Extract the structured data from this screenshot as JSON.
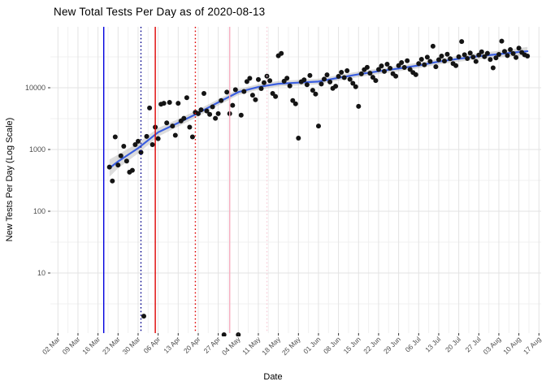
{
  "title": "New Total Tests Per Day as of 2020-08-13",
  "x_axis": {
    "label": "Date"
  },
  "y_axis": {
    "label": "New Tests Per Day (Log Scale)"
  },
  "colors": {
    "point": "#141414",
    "smooth_line": "#3B5FE0",
    "ribbon": "#9a9a9a",
    "grid_major": "#e3e3e3",
    "grid_minor": "#f0f0f0",
    "tick_label": "#4d4d4d",
    "vline_blue": "#0000DF",
    "vline_navy": "#00008B",
    "vline_red": "#DE0000",
    "vline_pink": "#F7AEC0",
    "vline_pink_light": "#F9CFDA"
  },
  "chart_data": {
    "type": "scatter",
    "title": "New Total Tests Per Day as of 2020-08-13",
    "xlabel": "Date",
    "ylabel": "New Tests Per Day (Log Scale)",
    "y_scale": "log10",
    "ylim": [
      1,
      97000
    ],
    "y_major_ticks": [
      10,
      100,
      1000,
      10000
    ],
    "y_minor_ticks": [
      3.162,
      31.62,
      316.2,
      3162,
      31623
    ],
    "x_range": [
      "2020-03-02",
      "2020-08-17"
    ],
    "x_tick_labels": [
      "02 Mar",
      "09 Mar",
      "16 Mar",
      "23 Mar",
      "30 Mar",
      "06 Apr",
      "13 Apr",
      "20 Apr",
      "27 Apr",
      "04 May",
      "11 May",
      "18 May",
      "25 May",
      "01 Jun",
      "08 Jun",
      "15 Jun",
      "22 Jun",
      "29 Jun",
      "06 Jul",
      "13 Jul",
      "20 Jul",
      "27 Jul",
      "03 Aug",
      "10 Aug",
      "17 Aug"
    ],
    "grid": "on",
    "legend": "none",
    "vlines": [
      {
        "name": "event-line-1",
        "date": "2020-03-18",
        "color": "#0000DF",
        "style": "solid"
      },
      {
        "name": "event-line-2",
        "date": "2020-03-31",
        "color": "#00008B",
        "style": "dotted"
      },
      {
        "name": "event-line-3",
        "date": "2020-04-05",
        "color": "#DE0000",
        "style": "solid"
      },
      {
        "name": "event-line-4",
        "date": "2020-04-19",
        "color": "#DE0000",
        "style": "dotted"
      },
      {
        "name": "event-line-5",
        "date": "2020-05-01",
        "color": "#F7AEC0",
        "style": "solid"
      },
      {
        "name": "event-line-6",
        "date": "2020-05-14",
        "color": "#F9CFDA",
        "style": "dotted"
      }
    ],
    "smooth_line": {
      "name": "loess-smooth",
      "color": "#3B5FE0",
      "anchors": [
        [
          "2020-03-20",
          500
        ],
        [
          "2020-03-23",
          640
        ],
        [
          "2020-03-30",
          1050
        ],
        [
          "2020-04-06",
          1900
        ],
        [
          "2020-04-13",
          2700
        ],
        [
          "2020-04-20",
          3900
        ],
        [
          "2020-04-27",
          5800
        ],
        [
          "2020-05-04",
          8500
        ],
        [
          "2020-05-11",
          10300
        ],
        [
          "2020-05-18",
          11600
        ],
        [
          "2020-05-25",
          12100
        ],
        [
          "2020-06-01",
          12600
        ],
        [
          "2020-06-08",
          14500
        ],
        [
          "2020-06-15",
          16500
        ],
        [
          "2020-06-22",
          18500
        ],
        [
          "2020-06-29",
          20500
        ],
        [
          "2020-07-06",
          23000
        ],
        [
          "2020-07-13",
          26500
        ],
        [
          "2020-07-20",
          29500
        ],
        [
          "2020-07-27",
          32500
        ],
        [
          "2020-08-03",
          35000
        ],
        [
          "2020-08-10",
          38000
        ],
        [
          "2020-08-13",
          39000
        ]
      ],
      "ribbon_halfwidth_log10": [
        0.14,
        0.11,
        0.085,
        0.07,
        0.06,
        0.055,
        0.05,
        0.048,
        0.045,
        0.045,
        0.045,
        0.045,
        0.045,
        0.045,
        0.045,
        0.045,
        0.045,
        0.045,
        0.048,
        0.05,
        0.055,
        0.062,
        0.07
      ]
    },
    "points": [
      [
        "2020-03-20",
        520
      ],
      [
        "2020-03-21",
        310
      ],
      [
        "2020-03-22",
        1600
      ],
      [
        "2020-03-23",
        560
      ],
      [
        "2020-03-24",
        790
      ],
      [
        "2020-03-25",
        1130
      ],
      [
        "2020-03-26",
        650
      ],
      [
        "2020-03-27",
        430
      ],
      [
        "2020-03-28",
        460
      ],
      [
        "2020-03-29",
        1200
      ],
      [
        "2020-03-30",
        1360
      ],
      [
        "2020-03-31",
        900
      ],
      [
        "2020-04-01",
        2
      ],
      [
        "2020-04-02",
        1630
      ],
      [
        "2020-04-03",
        4700
      ],
      [
        "2020-04-04",
        1200
      ],
      [
        "2020-04-05",
        2300
      ],
      [
        "2020-04-06",
        1500
      ],
      [
        "2020-04-07",
        5400
      ],
      [
        "2020-04-08",
        5600
      ],
      [
        "2020-04-09",
        2700
      ],
      [
        "2020-04-10",
        5800
      ],
      [
        "2020-04-11",
        2400
      ],
      [
        "2020-04-12",
        1700
      ],
      [
        "2020-04-13",
        5600
      ],
      [
        "2020-04-14",
        2900
      ],
      [
        "2020-04-15",
        3200
      ],
      [
        "2020-04-16",
        6900
      ],
      [
        "2020-04-17",
        2300
      ],
      [
        "2020-04-18",
        1600
      ],
      [
        "2020-04-19",
        4000
      ],
      [
        "2020-04-20",
        3800
      ],
      [
        "2020-04-21",
        4400
      ],
      [
        "2020-04-22",
        8100
      ],
      [
        "2020-04-23",
        4200
      ],
      [
        "2020-04-24",
        3700
      ],
      [
        "2020-04-25",
        4900
      ],
      [
        "2020-04-26",
        3200
      ],
      [
        "2020-04-27",
        3800
      ],
      [
        "2020-04-28",
        6200
      ],
      [
        "2020-04-29",
        1
      ],
      [
        "2020-04-30",
        8500
      ],
      [
        "2020-05-01",
        3800
      ],
      [
        "2020-05-02",
        5200
      ],
      [
        "2020-05-03",
        9300
      ],
      [
        "2020-05-04",
        1
      ],
      [
        "2020-05-05",
        3600
      ],
      [
        "2020-05-06",
        8700
      ],
      [
        "2020-05-07",
        12600
      ],
      [
        "2020-05-08",
        14200
      ],
      [
        "2020-05-09",
        7600
      ],
      [
        "2020-05-10",
        6400
      ],
      [
        "2020-05-11",
        13600
      ],
      [
        "2020-05-12",
        9700
      ],
      [
        "2020-05-13",
        12100
      ],
      [
        "2020-05-14",
        15400
      ],
      [
        "2020-05-15",
        13000
      ],
      [
        "2020-05-16",
        8100
      ],
      [
        "2020-05-17",
        7200
      ],
      [
        "2020-05-18",
        33000
      ],
      [
        "2020-05-19",
        36000
      ],
      [
        "2020-05-20",
        12800
      ],
      [
        "2020-05-21",
        14300
      ],
      [
        "2020-05-22",
        10700
      ],
      [
        "2020-05-23",
        6200
      ],
      [
        "2020-05-24",
        5500
      ],
      [
        "2020-05-25",
        1530
      ],
      [
        "2020-05-26",
        12500
      ],
      [
        "2020-05-27",
        13400
      ],
      [
        "2020-05-28",
        11200
      ],
      [
        "2020-05-29",
        15800
      ],
      [
        "2020-05-30",
        9100
      ],
      [
        "2020-05-31",
        7900
      ],
      [
        "2020-06-01",
        2400
      ],
      [
        "2020-06-02",
        11500
      ],
      [
        "2020-06-03",
        13800
      ],
      [
        "2020-06-04",
        16200
      ],
      [
        "2020-06-05",
        12400
      ],
      [
        "2020-06-06",
        9800
      ],
      [
        "2020-06-07",
        10600
      ],
      [
        "2020-06-08",
        15300
      ],
      [
        "2020-06-09",
        17800
      ],
      [
        "2020-06-10",
        14600
      ],
      [
        "2020-06-11",
        18900
      ],
      [
        "2020-06-12",
        13700
      ],
      [
        "2020-06-13",
        11800
      ],
      [
        "2020-06-14",
        10400
      ],
      [
        "2020-06-15",
        5000
      ],
      [
        "2020-06-16",
        16800
      ],
      [
        "2020-06-17",
        19600
      ],
      [
        "2020-06-18",
        21400
      ],
      [
        "2020-06-19",
        17200
      ],
      [
        "2020-06-20",
        14800
      ],
      [
        "2020-06-21",
        13100
      ],
      [
        "2020-06-22",
        19800
      ],
      [
        "2020-06-23",
        22600
      ],
      [
        "2020-06-24",
        18400
      ],
      [
        "2020-06-25",
        24100
      ],
      [
        "2020-06-26",
        20700
      ],
      [
        "2020-06-27",
        16900
      ],
      [
        "2020-06-28",
        15400
      ],
      [
        "2020-06-29",
        22800
      ],
      [
        "2020-06-30",
        25600
      ],
      [
        "2020-07-01",
        21300
      ],
      [
        "2020-07-02",
        27400
      ],
      [
        "2020-07-03",
        19800
      ],
      [
        "2020-07-04",
        17600
      ],
      [
        "2020-07-05",
        16300
      ],
      [
        "2020-07-06",
        24700
      ],
      [
        "2020-07-07",
        28900
      ],
      [
        "2020-07-08",
        23500
      ],
      [
        "2020-07-09",
        31200
      ],
      [
        "2020-07-10",
        26800
      ],
      [
        "2020-07-11",
        47000
      ],
      [
        "2020-07-12",
        21900
      ],
      [
        "2020-07-13",
        28400
      ],
      [
        "2020-07-14",
        32600
      ],
      [
        "2020-07-15",
        27100
      ],
      [
        "2020-07-16",
        34800
      ],
      [
        "2020-07-17",
        29500
      ],
      [
        "2020-07-18",
        24600
      ],
      [
        "2020-07-19",
        22800
      ],
      [
        "2020-07-20",
        31700
      ],
      [
        "2020-07-21",
        56000
      ],
      [
        "2020-07-22",
        34200
      ],
      [
        "2020-07-23",
        29800
      ],
      [
        "2020-07-24",
        36500
      ],
      [
        "2020-07-25",
        31400
      ],
      [
        "2020-07-26",
        26700
      ],
      [
        "2020-07-27",
        33800
      ],
      [
        "2020-07-28",
        38200
      ],
      [
        "2020-07-29",
        31900
      ],
      [
        "2020-07-30",
        36100
      ],
      [
        "2020-07-31",
        28700
      ],
      [
        "2020-08-01",
        21000
      ],
      [
        "2020-08-02",
        30400
      ],
      [
        "2020-08-03",
        34600
      ],
      [
        "2020-08-04",
        57000
      ],
      [
        "2020-08-05",
        38900
      ],
      [
        "2020-08-06",
        33200
      ],
      [
        "2020-08-07",
        41500
      ],
      [
        "2020-08-08",
        35800
      ],
      [
        "2020-08-09",
        30900
      ],
      [
        "2020-08-10",
        43800
      ],
      [
        "2020-08-11",
        37400
      ],
      [
        "2020-08-12",
        34100
      ],
      [
        "2020-08-13",
        32600
      ]
    ]
  }
}
